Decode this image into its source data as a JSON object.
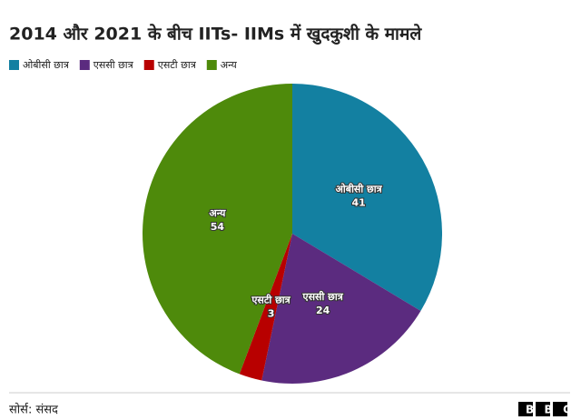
{
  "chart_data": {
    "type": "pie",
    "title": "2014 और 2021 के बीच IITs- IIMs में खुदकुशी के मामले",
    "categories": [
      "ओबीसी छात्र",
      "एससी छात्र",
      "एसटी छात्र",
      "अन्य"
    ],
    "values": [
      41,
      24,
      3,
      54
    ],
    "colors": [
      "#1380a1",
      "#5b2b7f",
      "#b80000",
      "#4e8a0b"
    ],
    "legend": "top-left",
    "source": "सोर्स: संसद",
    "logo": "BBC"
  }
}
